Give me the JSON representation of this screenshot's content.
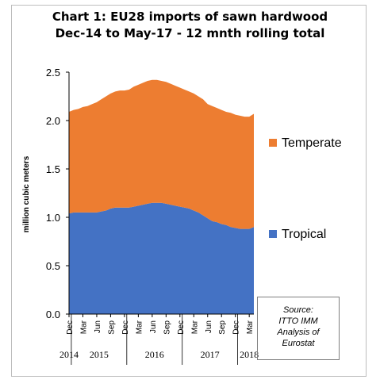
{
  "chart_data": {
    "type": "area",
    "stacked": true,
    "title_line1": "Chart 1: EU28 imports of sawn hardwood",
    "title_line2": "Dec-14 to May-17 - 12 mnth rolling total",
    "ylabel": "million cubic meters",
    "ylim": [
      0,
      2.5
    ],
    "yticks": [
      "0.0",
      "0.5",
      "1.0",
      "1.5",
      "2.0",
      "2.5"
    ],
    "month_labels": [
      "Dec",
      "Mar",
      "Jun",
      "Sep",
      "Dec",
      "Mar",
      "Jun",
      "Sep",
      "Dec",
      "Mar",
      "Jun",
      "Sep",
      "Dec",
      "Mar"
    ],
    "year_labels": [
      "2014",
      "2015",
      "2016",
      "2017",
      "2018"
    ],
    "x": [
      "Dec-14",
      "Jan-15",
      "Feb-15",
      "Mar-15",
      "Apr-15",
      "May-15",
      "Jun-15",
      "Jul-15",
      "Aug-15",
      "Sep-15",
      "Oct-15",
      "Nov-15",
      "Dec-15",
      "Jan-16",
      "Feb-16",
      "Mar-16",
      "Apr-16",
      "May-16",
      "Jun-16",
      "Jul-16",
      "Aug-16",
      "Sep-16",
      "Oct-16",
      "Nov-16",
      "Dec-16",
      "Jan-17",
      "Feb-17",
      "Mar-17",
      "Apr-17",
      "May-17",
      "Jun-17",
      "Jul-17",
      "Aug-17",
      "Sep-17",
      "Oct-17",
      "Nov-17",
      "Dec-17",
      "Jan-18",
      "Feb-18",
      "Mar-18",
      "Apr-18"
    ],
    "series": [
      {
        "name": "Tropical",
        "color": "#4472c4",
        "values": [
          1.04,
          1.05,
          1.05,
          1.05,
          1.05,
          1.05,
          1.05,
          1.06,
          1.07,
          1.09,
          1.1,
          1.1,
          1.1,
          1.1,
          1.11,
          1.12,
          1.13,
          1.14,
          1.15,
          1.15,
          1.15,
          1.14,
          1.13,
          1.12,
          1.11,
          1.1,
          1.09,
          1.07,
          1.05,
          1.02,
          0.99,
          0.96,
          0.95,
          0.93,
          0.92,
          0.9,
          0.89,
          0.88,
          0.88,
          0.88,
          0.9
        ]
      },
      {
        "name": "Temperate",
        "color": "#ed7d31",
        "values": [
          1.05,
          1.06,
          1.07,
          1.09,
          1.1,
          1.12,
          1.14,
          1.16,
          1.18,
          1.19,
          1.2,
          1.21,
          1.21,
          1.22,
          1.24,
          1.25,
          1.26,
          1.27,
          1.27,
          1.27,
          1.26,
          1.26,
          1.25,
          1.24,
          1.23,
          1.22,
          1.21,
          1.21,
          1.2,
          1.2,
          1.18,
          1.19,
          1.18,
          1.18,
          1.17,
          1.18,
          1.17,
          1.17,
          1.16,
          1.16,
          1.17
        ]
      }
    ],
    "legend_placement": "right",
    "grid": false
  },
  "source_box": {
    "line1": "Source:",
    "line2": "ITTO IMM",
    "line3": "Analysis of",
    "line4": "Eurostat"
  }
}
